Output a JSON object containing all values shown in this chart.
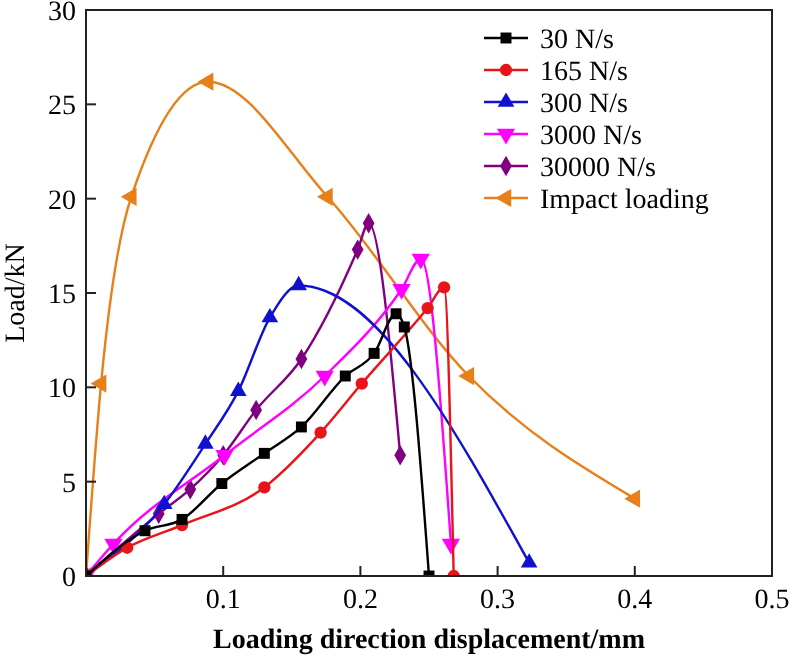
{
  "chart_data": {
    "type": "line",
    "xlabel": "Loading direction displacement/mm",
    "ylabel": "Load/kN",
    "xlim": [
      0,
      0.5
    ],
    "ylim": [
      0,
      30
    ],
    "xticks": [
      0.1,
      0.2,
      0.3,
      0.4,
      0.5
    ],
    "yticks": [
      0,
      5,
      10,
      15,
      20,
      25,
      30
    ],
    "legend": "top right",
    "grid": false,
    "series": [
      {
        "name": "30 N/s",
        "color": "#000000",
        "marker": "square",
        "x": [
          0,
          0.043,
          0.07,
          0.099,
          0.13,
          0.157,
          0.189,
          0.21,
          0.226,
          0.232,
          0.25
        ],
        "values": [
          0,
          2.4,
          3.0,
          4.9,
          6.5,
          7.9,
          10.6,
          11.8,
          13.9,
          13.2,
          0
        ]
      },
      {
        "name": "165 N/s",
        "color": "#e8141a",
        "marker": "circle",
        "x": [
          0,
          0.03,
          0.07,
          0.13,
          0.171,
          0.201,
          0.249,
          0.261,
          0.268
        ],
        "values": [
          0,
          1.5,
          2.7,
          4.7,
          7.6,
          10.2,
          14.2,
          15.3,
          0
        ]
      },
      {
        "name": "300 N/s",
        "color": "#1010d0",
        "marker": "triangle",
        "x": [
          0,
          0.057,
          0.087,
          0.111,
          0.134,
          0.155,
          0.323
        ],
        "values": [
          0,
          3.8,
          7.0,
          9.8,
          13.7,
          15.4,
          0.7
        ]
      },
      {
        "name": "3000 N/s",
        "color": "#ff00ff",
        "marker": "triangle-down",
        "x": [
          0,
          0.02,
          0.101,
          0.174,
          0.23,
          0.244,
          0.266
        ],
        "values": [
          0,
          1.7,
          6.4,
          10.6,
          15.2,
          16.8,
          1.7
        ]
      },
      {
        "name": "30000 N/s",
        "color": "#800080",
        "marker": "diamond",
        "x": [
          0,
          0.053,
          0.076,
          0.1,
          0.124,
          0.157,
          0.198,
          0.206,
          0.229
        ],
        "values": [
          0,
          3.3,
          4.6,
          6.4,
          8.8,
          11.5,
          17.3,
          18.7,
          6.4
        ]
      },
      {
        "name": "Impact loading",
        "color": "#e8801a",
        "marker": "triangle-left",
        "x": [
          0,
          0.011,
          0.033,
          0.089,
          0.176,
          0.279,
          0.4
        ],
        "values": [
          0,
          10.2,
          20.1,
          26.2,
          20.1,
          10.6,
          4.1
        ]
      }
    ]
  }
}
